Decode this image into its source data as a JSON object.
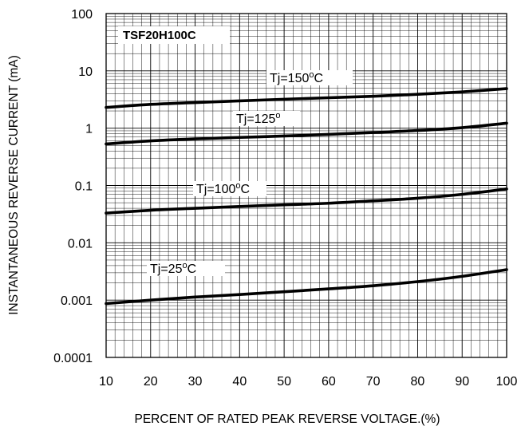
{
  "chart_data": {
    "type": "line",
    "title": "",
    "part_number": "TSF20H100C",
    "xlabel": "PERCENT OF RATED PEAK REVERSE VOLTAGE.(%)",
    "ylabel": "INSTANTANEOUS REVERSE CURRENT (mA)",
    "xlim": [
      10,
      100
    ],
    "ylim": [
      0.0001,
      100
    ],
    "y_scale": "log",
    "grid": true,
    "x_ticks": [
      "10",
      "20",
      "30",
      "40",
      "50",
      "60",
      "70",
      "80",
      "90",
      "100"
    ],
    "y_ticks": [
      "100",
      "10",
      "1",
      "0.1",
      "0.01",
      "0.001",
      "0.0001"
    ],
    "series": [
      {
        "name": "Tj=150°C",
        "label_parts": [
          "Tj=150",
          "o",
          "C"
        ],
        "x": [
          10,
          20,
          30,
          40,
          50,
          60,
          70,
          80,
          90,
          100
        ],
        "y": [
          2.3,
          2.6,
          2.8,
          3.0,
          3.2,
          3.4,
          3.6,
          3.9,
          4.3,
          4.9
        ]
      },
      {
        "name": "Tj=125°",
        "label_parts": [
          "Tj=125",
          "o",
          ""
        ],
        "x": [
          10,
          20,
          30,
          40,
          50,
          60,
          70,
          80,
          90,
          100
        ],
        "y": [
          0.53,
          0.6,
          0.65,
          0.69,
          0.73,
          0.78,
          0.84,
          0.91,
          1.02,
          1.22
        ]
      },
      {
        "name": "Tj=100°C",
        "label_parts": [
          "Tj=100",
          "o",
          "C"
        ],
        "x": [
          10,
          20,
          30,
          40,
          50,
          60,
          70,
          80,
          90,
          100
        ],
        "y": [
          0.033,
          0.037,
          0.04,
          0.043,
          0.046,
          0.049,
          0.054,
          0.06,
          0.07,
          0.087
        ]
      },
      {
        "name": "Tj=25°C",
        "label_parts": [
          "Tj=25",
          "o",
          "C"
        ],
        "x": [
          10,
          20,
          30,
          40,
          50,
          60,
          70,
          80,
          90,
          100
        ],
        "y": [
          0.00087,
          0.001,
          0.00113,
          0.00125,
          0.0014,
          0.00157,
          0.00178,
          0.0021,
          0.0026,
          0.0034
        ]
      }
    ],
    "colors": {
      "line": "#000000",
      "grid": "#000000",
      "background": "#ffffff"
    }
  }
}
